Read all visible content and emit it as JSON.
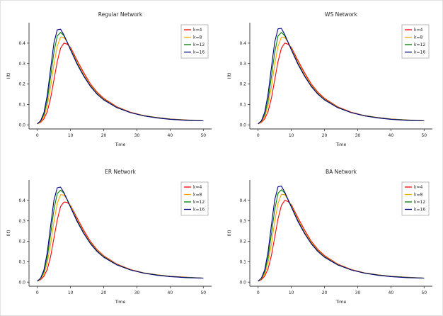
{
  "figure": {
    "background": "#ffffff",
    "spine_color": "#333333",
    "legend_border_color": "#aaaaaa"
  },
  "chart_data": [
    {
      "type": "line",
      "title": "Regular Network",
      "xlabel": "Time",
      "ylabel": "I(t)",
      "xlim": [
        -2.5,
        52.5
      ],
      "ylim": [
        -0.02,
        0.5
      ],
      "xticks": [
        0,
        10,
        20,
        30,
        40,
        50
      ],
      "yticks": [
        0.0,
        0.1,
        0.2,
        0.3,
        0.4
      ],
      "legend_position": "upper right",
      "grid": false,
      "x": [
        0,
        1,
        2,
        3,
        4,
        5,
        6,
        7,
        8,
        9,
        10,
        12,
        14,
        16,
        18,
        20,
        24,
        28,
        32,
        36,
        40,
        45,
        50
      ],
      "series": [
        {
          "name": "k=4",
          "color": "#ff0000",
          "values": [
            0.005,
            0.012,
            0.03,
            0.065,
            0.13,
            0.22,
            0.31,
            0.375,
            0.4,
            0.395,
            0.38,
            0.315,
            0.255,
            0.2,
            0.16,
            0.13,
            0.088,
            0.062,
            0.046,
            0.036,
            0.029,
            0.024,
            0.02
          ]
        },
        {
          "name": "k=8",
          "color": "#ffa500",
          "values": [
            0.005,
            0.015,
            0.04,
            0.095,
            0.185,
            0.295,
            0.385,
            0.43,
            0.428,
            0.405,
            0.375,
            0.305,
            0.245,
            0.195,
            0.155,
            0.126,
            0.086,
            0.061,
            0.045,
            0.035,
            0.028,
            0.023,
            0.02
          ]
        },
        {
          "name": "k=12",
          "color": "#008000",
          "values": [
            0.005,
            0.018,
            0.05,
            0.12,
            0.235,
            0.355,
            0.435,
            0.452,
            0.437,
            0.405,
            0.37,
            0.3,
            0.24,
            0.19,
            0.152,
            0.124,
            0.085,
            0.06,
            0.045,
            0.035,
            0.028,
            0.023,
            0.02
          ]
        },
        {
          "name": "k=16",
          "color": "#000080",
          "values": [
            0.005,
            0.02,
            0.06,
            0.145,
            0.275,
            0.4,
            0.465,
            0.468,
            0.44,
            0.405,
            0.368,
            0.297,
            0.238,
            0.188,
            0.15,
            0.122,
            0.084,
            0.06,
            0.044,
            0.034,
            0.027,
            0.022,
            0.02
          ]
        }
      ]
    },
    {
      "type": "line",
      "title": "WS Network",
      "xlabel": "Time",
      "ylabel": "I(t)",
      "xlim": [
        -2.5,
        52.5
      ],
      "ylim": [
        -0.02,
        0.5
      ],
      "xticks": [
        0,
        10,
        20,
        30,
        40,
        50
      ],
      "yticks": [
        0.0,
        0.1,
        0.2,
        0.3,
        0.4
      ],
      "legend_position": "upper right",
      "grid": false,
      "x": [
        0,
        1,
        2,
        3,
        4,
        5,
        6,
        7,
        8,
        9,
        10,
        12,
        14,
        16,
        18,
        20,
        24,
        28,
        32,
        36,
        40,
        45,
        50
      ],
      "series": [
        {
          "name": "k=4",
          "color": "#ff0000",
          "values": [
            0.005,
            0.012,
            0.03,
            0.065,
            0.13,
            0.22,
            0.31,
            0.375,
            0.4,
            0.395,
            0.38,
            0.315,
            0.255,
            0.2,
            0.16,
            0.13,
            0.088,
            0.062,
            0.046,
            0.036,
            0.029,
            0.024,
            0.02
          ]
        },
        {
          "name": "k=8",
          "color": "#ffa500",
          "values": [
            0.005,
            0.015,
            0.04,
            0.095,
            0.185,
            0.295,
            0.385,
            0.43,
            0.428,
            0.405,
            0.375,
            0.305,
            0.245,
            0.195,
            0.155,
            0.126,
            0.086,
            0.061,
            0.045,
            0.035,
            0.028,
            0.023,
            0.02
          ]
        },
        {
          "name": "k=12",
          "color": "#008000",
          "values": [
            0.005,
            0.018,
            0.05,
            0.12,
            0.235,
            0.355,
            0.435,
            0.452,
            0.437,
            0.405,
            0.37,
            0.3,
            0.24,
            0.19,
            0.152,
            0.124,
            0.085,
            0.06,
            0.045,
            0.035,
            0.028,
            0.023,
            0.02
          ]
        },
        {
          "name": "k=16",
          "color": "#000080",
          "values": [
            0.005,
            0.02,
            0.062,
            0.15,
            0.28,
            0.405,
            0.47,
            0.472,
            0.442,
            0.406,
            0.368,
            0.297,
            0.238,
            0.188,
            0.15,
            0.122,
            0.084,
            0.06,
            0.044,
            0.034,
            0.027,
            0.022,
            0.02
          ]
        }
      ]
    },
    {
      "type": "line",
      "title": "ER Network",
      "xlabel": "Time",
      "ylabel": "I(t)",
      "xlim": [
        -2.5,
        52.5
      ],
      "ylim": [
        -0.02,
        0.5
      ],
      "xticks": [
        0,
        10,
        20,
        30,
        40,
        50
      ],
      "yticks": [
        0.0,
        0.1,
        0.2,
        0.3,
        0.4
      ],
      "legend_position": "upper right",
      "grid": false,
      "x": [
        0,
        1,
        2,
        3,
        4,
        5,
        6,
        7,
        8,
        9,
        10,
        12,
        14,
        16,
        18,
        20,
        24,
        28,
        32,
        36,
        40,
        45,
        50
      ],
      "series": [
        {
          "name": "k=4",
          "color": "#ff0000",
          "values": [
            0.005,
            0.012,
            0.029,
            0.062,
            0.125,
            0.215,
            0.305,
            0.37,
            0.392,
            0.39,
            0.376,
            0.313,
            0.253,
            0.199,
            0.159,
            0.129,
            0.088,
            0.062,
            0.046,
            0.036,
            0.029,
            0.024,
            0.02
          ]
        },
        {
          "name": "k=8",
          "color": "#ffa500",
          "values": [
            0.005,
            0.015,
            0.04,
            0.095,
            0.185,
            0.295,
            0.385,
            0.428,
            0.426,
            0.404,
            0.374,
            0.304,
            0.244,
            0.194,
            0.155,
            0.126,
            0.086,
            0.061,
            0.045,
            0.035,
            0.028,
            0.023,
            0.02
          ]
        },
        {
          "name": "k=12",
          "color": "#008000",
          "values": [
            0.005,
            0.018,
            0.05,
            0.12,
            0.235,
            0.355,
            0.433,
            0.45,
            0.436,
            0.404,
            0.369,
            0.3,
            0.24,
            0.19,
            0.152,
            0.124,
            0.085,
            0.06,
            0.045,
            0.035,
            0.028,
            0.023,
            0.02
          ]
        },
        {
          "name": "k=16",
          "color": "#000080",
          "values": [
            0.005,
            0.02,
            0.06,
            0.145,
            0.275,
            0.4,
            0.462,
            0.465,
            0.438,
            0.404,
            0.367,
            0.297,
            0.238,
            0.188,
            0.15,
            0.122,
            0.084,
            0.06,
            0.044,
            0.034,
            0.027,
            0.022,
            0.02
          ]
        }
      ]
    },
    {
      "type": "line",
      "title": "BA Network",
      "xlabel": "Time",
      "ylabel": "I(t)",
      "xlim": [
        -2.5,
        52.5
      ],
      "ylim": [
        -0.02,
        0.5
      ],
      "xticks": [
        0,
        10,
        20,
        30,
        40,
        50
      ],
      "yticks": [
        0.0,
        0.1,
        0.2,
        0.3,
        0.4
      ],
      "legend_position": "upper right",
      "grid": false,
      "x": [
        0,
        1,
        2,
        3,
        4,
        5,
        6,
        7,
        8,
        9,
        10,
        12,
        14,
        16,
        18,
        20,
        24,
        28,
        32,
        36,
        40,
        45,
        50
      ],
      "series": [
        {
          "name": "k=4",
          "color": "#ff0000",
          "values": [
            0.005,
            0.012,
            0.03,
            0.065,
            0.13,
            0.22,
            0.31,
            0.375,
            0.4,
            0.395,
            0.38,
            0.315,
            0.255,
            0.2,
            0.16,
            0.13,
            0.088,
            0.062,
            0.046,
            0.036,
            0.029,
            0.024,
            0.02
          ]
        },
        {
          "name": "k=8",
          "color": "#ffa500",
          "values": [
            0.005,
            0.015,
            0.04,
            0.095,
            0.185,
            0.295,
            0.385,
            0.43,
            0.428,
            0.405,
            0.375,
            0.305,
            0.245,
            0.195,
            0.155,
            0.126,
            0.086,
            0.061,
            0.045,
            0.035,
            0.028,
            0.023,
            0.02
          ]
        },
        {
          "name": "k=12",
          "color": "#008000",
          "values": [
            0.005,
            0.018,
            0.05,
            0.12,
            0.235,
            0.355,
            0.435,
            0.452,
            0.437,
            0.405,
            0.37,
            0.3,
            0.24,
            0.19,
            0.152,
            0.124,
            0.085,
            0.06,
            0.045,
            0.035,
            0.028,
            0.023,
            0.02
          ]
        },
        {
          "name": "k=16",
          "color": "#000080",
          "values": [
            0.005,
            0.02,
            0.06,
            0.148,
            0.278,
            0.402,
            0.467,
            0.47,
            0.441,
            0.405,
            0.368,
            0.297,
            0.238,
            0.188,
            0.15,
            0.122,
            0.084,
            0.06,
            0.044,
            0.034,
            0.027,
            0.022,
            0.02
          ]
        }
      ]
    }
  ]
}
